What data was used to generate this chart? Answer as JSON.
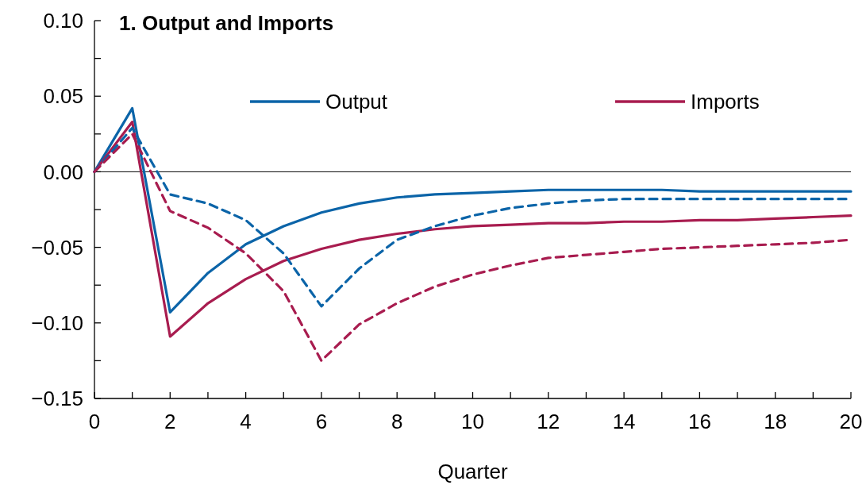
{
  "chart_data": {
    "type": "line",
    "title": "1. Output and Imports",
    "xlabel": "Quarter",
    "x": [
      0,
      1,
      2,
      3,
      4,
      5,
      6,
      7,
      8,
      9,
      10,
      11,
      12,
      13,
      14,
      15,
      16,
      17,
      18,
      19,
      20
    ],
    "series": [
      {
        "name": "Output",
        "color": "#0b64a8",
        "line_style": "solid",
        "values": [
          0,
          0.042,
          -0.093,
          -0.067,
          -0.048,
          -0.036,
          -0.027,
          -0.021,
          -0.017,
          -0.015,
          -0.014,
          -0.013,
          -0.012,
          -0.012,
          -0.012,
          -0.012,
          -0.013,
          -0.013,
          -0.013,
          -0.013,
          -0.013
        ]
      },
      {
        "name": "Imports",
        "color": "#a81c4f",
        "line_style": "solid",
        "values": [
          0,
          0.033,
          -0.109,
          -0.087,
          -0.071,
          -0.059,
          -0.051,
          -0.045,
          -0.041,
          -0.038,
          -0.036,
          -0.035,
          -0.034,
          -0.034,
          -0.033,
          -0.033,
          -0.032,
          -0.032,
          -0.031,
          -0.03,
          -0.029
        ]
      },
      {
        "color": "#0b64a8",
        "line_style": "dashed",
        "values": [
          0,
          0.029,
          -0.015,
          -0.021,
          -0.032,
          -0.054,
          -0.089,
          -0.064,
          -0.045,
          -0.036,
          -0.029,
          -0.024,
          -0.021,
          -0.019,
          -0.018,
          -0.018,
          -0.018,
          -0.018,
          -0.018,
          -0.018,
          -0.018
        ]
      },
      {
        "color": "#a81c4f",
        "line_style": "dashed",
        "values": [
          0,
          0.025,
          -0.026,
          -0.037,
          -0.054,
          -0.079,
          -0.125,
          -0.101,
          -0.087,
          -0.076,
          -0.068,
          -0.062,
          -0.057,
          -0.055,
          -0.053,
          -0.051,
          -0.05,
          -0.049,
          -0.048,
          -0.047,
          -0.045
        ]
      }
    ],
    "xlim": [
      0,
      20
    ],
    "xticks": [
      0,
      {
        "value": 1,
        "label": null
      },
      2,
      {
        "value": 3,
        "label": null
      },
      4,
      {
        "value": 5,
        "label": null
      },
      6,
      {
        "value": 7,
        "label": null
      },
      8,
      {
        "value": 9,
        "label": null
      },
      10,
      {
        "value": 11,
        "label": null
      },
      12,
      {
        "value": 13,
        "label": null
      },
      14,
      {
        "value": 15,
        "label": null
      },
      16,
      {
        "value": 17,
        "label": null
      },
      18,
      {
        "value": 19,
        "label": null
      },
      20
    ],
    "ylim": [
      -0.15,
      0.1
    ],
    "yticks": [
      {
        "value": -0.15,
        "label": "−0.15"
      },
      {
        "value": -0.125,
        "label": null
      },
      {
        "value": -0.1,
        "label": "−0.10"
      },
      {
        "value": -0.075,
        "label": null
      },
      {
        "value": -0.05,
        "label": "−0.05"
      },
      {
        "value": -0.025,
        "label": null
      },
      {
        "value": 0,
        "label": "0.00"
      },
      {
        "value": 0.025,
        "label": null
      },
      {
        "value": 0.05,
        "label": "0.05"
      },
      {
        "value": 0.075,
        "label": null
      },
      {
        "value": 0.1,
        "label": "0.10"
      }
    ],
    "ref_lines": [
      {
        "axis": "y",
        "value": 0,
        "color": "#000000"
      }
    ],
    "grid": false,
    "legend": "top"
  }
}
